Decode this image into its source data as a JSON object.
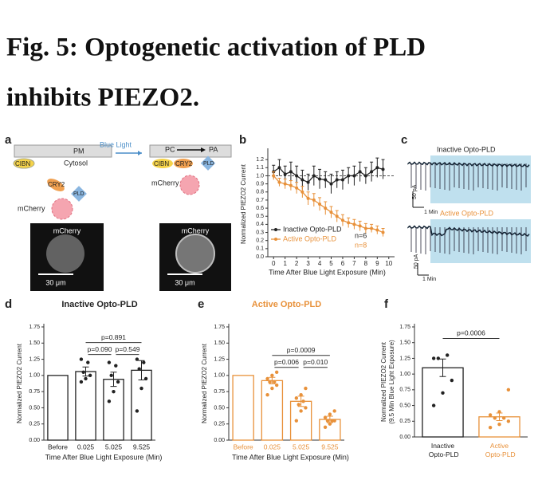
{
  "title": [
    "Fig. 5: Optogenetic activation of PLD",
    "inhibits PIEZO2."
  ],
  "panel_labels": [
    "a",
    "b",
    "c",
    "d",
    "e",
    "f"
  ],
  "diagram": {
    "blue_light": "Blue Light",
    "pm": "PM",
    "cytosol": "Cytosol",
    "pc": "PC",
    "pa": "PA",
    "cibn": "CIBN",
    "cry2": "CRY2",
    "pld": "PLD",
    "mcherry": "mCherry",
    "scale": "30 μm"
  },
  "traces": {
    "inactive": "Inactive Opto-PLD",
    "active": "Active Opto-PLD",
    "current_scale": "50 pA",
    "time_scale": "1 Min"
  },
  "chart_data": [
    {
      "type": "line",
      "xlabel": "Time After Blue Light Exposure (Min)",
      "ylabel": "Normalized PIEZO2 Current",
      "x": [
        0,
        0.5,
        1,
        1.5,
        2,
        2.5,
        3,
        3.5,
        4,
        4.5,
        5,
        5.5,
        6,
        6.5,
        7,
        7.5,
        8,
        8.5,
        9,
        9.5
      ],
      "xlim": [
        -0.5,
        10.5
      ],
      "xticks": [
        0,
        1,
        2,
        3,
        4,
        5,
        6,
        7,
        8,
        9,
        10
      ],
      "ylim": [
        0,
        1.3
      ],
      "yticks": [
        {
          "value": 0,
          "label": "0.0"
        },
        0.1,
        0.2,
        0.3,
        0.4,
        0.5,
        0.6,
        0.7,
        0.8,
        0.9,
        {
          "value": 1,
          "label": "1.0"
        },
        1.1,
        1.2
      ],
      "refline": 1,
      "legend": "lower left",
      "annotations": [
        "n=6",
        "n=8"
      ],
      "series": [
        {
          "name": "Inactive Opto-PLD",
          "color": "#222222",
          "values": [
            1.05,
            1.1,
            1.02,
            1.05,
            1.0,
            0.95,
            0.92,
            1.0,
            0.96,
            0.95,
            0.9,
            0.95,
            0.95,
            1.0,
            1.0,
            1.05,
            1.0,
            1.05,
            1.1,
            1.08
          ],
          "errors": [
            0.08,
            0.1,
            0.1,
            0.12,
            0.12,
            0.12,
            0.1,
            0.12,
            0.12,
            0.1,
            0.12,
            0.1,
            0.12,
            0.1,
            0.12,
            0.12,
            0.1,
            0.12,
            0.12,
            0.12
          ]
        },
        {
          "name": "Active Opto-PLD",
          "color": "#e8913a",
          "values": [
            1.0,
            0.92,
            0.9,
            0.88,
            0.85,
            0.8,
            0.72,
            0.7,
            0.65,
            0.6,
            0.55,
            0.5,
            0.45,
            0.42,
            0.4,
            0.38,
            0.35,
            0.35,
            0.33,
            0.3
          ],
          "errors": [
            0.05,
            0.05,
            0.06,
            0.06,
            0.07,
            0.07,
            0.08,
            0.08,
            0.08,
            0.08,
            0.07,
            0.07,
            0.07,
            0.06,
            0.06,
            0.06,
            0.06,
            0.05,
            0.05,
            0.05
          ]
        }
      ]
    },
    {
      "type": "bar",
      "title": "Inactive Opto-PLD",
      "xlabel": "Time After Blue Light Exposure (Min)",
      "ylabel": "Normalized PIEZO2 Current",
      "categories": [
        "Before",
        "0.025",
        "5.025",
        "9.525"
      ],
      "values": [
        1.0,
        1.06,
        0.94,
        1.08
      ],
      "errors": [
        null,
        0.07,
        0.11,
        0.15
      ],
      "color": "#222222",
      "points": [
        [],
        [
          0.9,
          0.95,
          1.0,
          1.05,
          1.2,
          1.25
        ],
        [
          0.6,
          0.75,
          0.9,
          1.0,
          1.15,
          1.2
        ],
        [
          0.45,
          0.8,
          0.95,
          1.1,
          1.2,
          1.25
        ]
      ],
      "ylim": [
        0,
        1.75
      ],
      "yticks": [
        {
          "value": 0,
          "label": "0.00"
        },
        0.25,
        {
          "value": 0.5,
          "label": "0.50"
        },
        0.75,
        {
          "value": 1,
          "label": "1.00"
        },
        1.25,
        {
          "value": 1.5,
          "label": "1.50"
        },
        1.75
      ],
      "annotations": [
        {
          "text": "p=0.891",
          "from": 1,
          "to": 3
        },
        {
          "text": "p=0.090",
          "from": 1,
          "to": 2
        },
        {
          "text": "p=0.549",
          "from": 2,
          "to": 3
        }
      ]
    },
    {
      "type": "bar",
      "title": "Active Opto-PLD",
      "xlabel": "Time After Blue Light Exposure (Min)",
      "ylabel": "Normalized PIEZO2 Current",
      "categories": [
        "Before",
        "0.025",
        "5.025",
        "9.525"
      ],
      "values": [
        1.0,
        0.92,
        0.6,
        0.32
      ],
      "errors": [
        null,
        0.05,
        0.08,
        0.05
      ],
      "color": "#e8913a",
      "points": [
        [],
        [
          0.7,
          0.8,
          0.85,
          0.9,
          0.9,
          0.95,
          1.0,
          1.05
        ],
        [
          0.3,
          0.45,
          0.5,
          0.55,
          0.6,
          0.65,
          0.7,
          0.8
        ],
        [
          0.2,
          0.25,
          0.3,
          0.3,
          0.3,
          0.35,
          0.4,
          0.45
        ]
      ],
      "ylim": [
        0,
        1.75
      ],
      "yticks": [
        {
          "value": 0,
          "label": "0.00"
        },
        0.25,
        {
          "value": 0.5,
          "label": "0.50"
        },
        0.75,
        {
          "value": 1,
          "label": "1.00"
        },
        1.25,
        {
          "value": 1.5,
          "label": "1.50"
        },
        1.75
      ],
      "annotations": [
        {
          "text": "p=0.0009",
          "from": 1,
          "to": 3
        },
        {
          "text": "p=0.006",
          "from": 1,
          "to": 2
        },
        {
          "text": "p=0.010",
          "from": 2,
          "to": 3
        }
      ]
    },
    {
      "type": "bar",
      "ylabel": [
        "Normalized PIEZO2 Current",
        "(9.5 Min Blue Light Exposure)"
      ],
      "categories": [
        "Inactive Opto-PLD",
        "Active Opto-PLD"
      ],
      "values": [
        1.1,
        0.32
      ],
      "errors": [
        0.14,
        0.06
      ],
      "colors": [
        "#222222",
        "#e8913a"
      ],
      "points": [
        [
          0.5,
          0.7,
          0.9,
          1.25,
          1.3,
          1.25
        ],
        [
          0.15,
          0.2,
          0.25,
          0.3,
          0.3,
          0.35,
          0.4,
          0.75
        ]
      ],
      "ylim": [
        0,
        1.75
      ],
      "yticks": [
        {
          "value": 0,
          "label": "0.00"
        },
        0.25,
        {
          "value": 0.5,
          "label": "0.50"
        },
        0.75,
        {
          "value": 1,
          "label": "1.00"
        },
        1.25,
        {
          "value": 1.5,
          "label": "1.50"
        },
        1.75
      ],
      "annotations": [
        {
          "text": "p=0.0006",
          "from": 0,
          "to": 1
        }
      ]
    }
  ]
}
